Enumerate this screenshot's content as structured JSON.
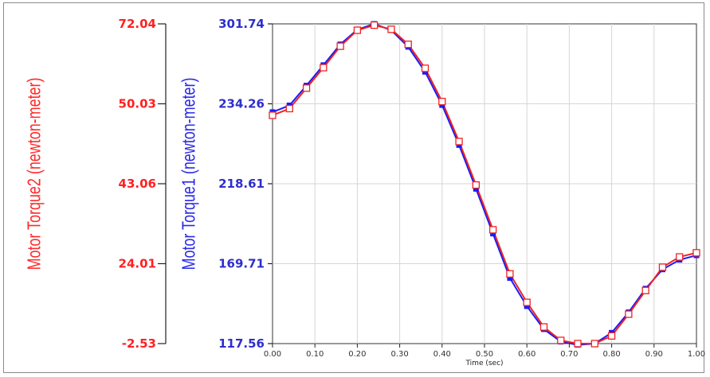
{
  "chart_data": {
    "type": "line",
    "xlabel": "Time (sec)",
    "ylabel_left": "Motor Torque2 (newton-meter)",
    "ylabel_right": "Motor Torque1 (newton-meter)",
    "x_ticks": [
      "0.00",
      "0.10",
      "0.20",
      "0.30",
      "0.40",
      "0.50",
      "0.60",
      "0.70",
      "0.80",
      "0.90",
      "1.00"
    ],
    "y_ticks_left": [
      "72.04",
      "50.03",
      "43.06",
      "24.01",
      "-2.53"
    ],
    "y_ticks_right": [
      "301.74",
      "234.26",
      "218.61",
      "169.71",
      "117.56"
    ],
    "xlim": [
      0,
      1
    ],
    "grid": true,
    "series": [
      {
        "color": "#1a1aff",
        "marker": "filled-square",
        "x": [
          0,
          0.04,
          0.08,
          0.12,
          0.16,
          0.2,
          0.24,
          0.28,
          0.32,
          0.36,
          0.4,
          0.44,
          0.48,
          0.52,
          0.56,
          0.6,
          0.64,
          0.68,
          0.72,
          0.76,
          0.8,
          0.84,
          0.88,
          0.92,
          0.96,
          1.0
        ],
        "y_frac": [
          0.724,
          0.745,
          0.807,
          0.871,
          0.936,
          0.982,
          1.0,
          0.98,
          0.928,
          0.85,
          0.746,
          0.621,
          0.484,
          0.344,
          0.205,
          0.117,
          0.045,
          0.006,
          -0.004,
          0.0,
          0.034,
          0.098,
          0.172,
          0.232,
          0.262,
          0.276
        ]
      },
      {
        "color": "#ee2222",
        "marker": "hollow-square",
        "x": [
          0,
          0.04,
          0.08,
          0.12,
          0.16,
          0.2,
          0.24,
          0.28,
          0.32,
          0.36,
          0.4,
          0.44,
          0.48,
          0.52,
          0.56,
          0.6,
          0.64,
          0.68,
          0.72,
          0.76,
          0.8,
          0.84,
          0.88,
          0.92,
          0.96,
          1.0
        ],
        "y_frac": [
          0.714,
          0.735,
          0.799,
          0.863,
          0.93,
          0.98,
          0.996,
          0.983,
          0.936,
          0.861,
          0.757,
          0.632,
          0.496,
          0.356,
          0.218,
          0.129,
          0.052,
          0.01,
          0.0,
          0.0,
          0.024,
          0.092,
          0.166,
          0.239,
          0.271,
          0.284
        ]
      }
    ]
  }
}
